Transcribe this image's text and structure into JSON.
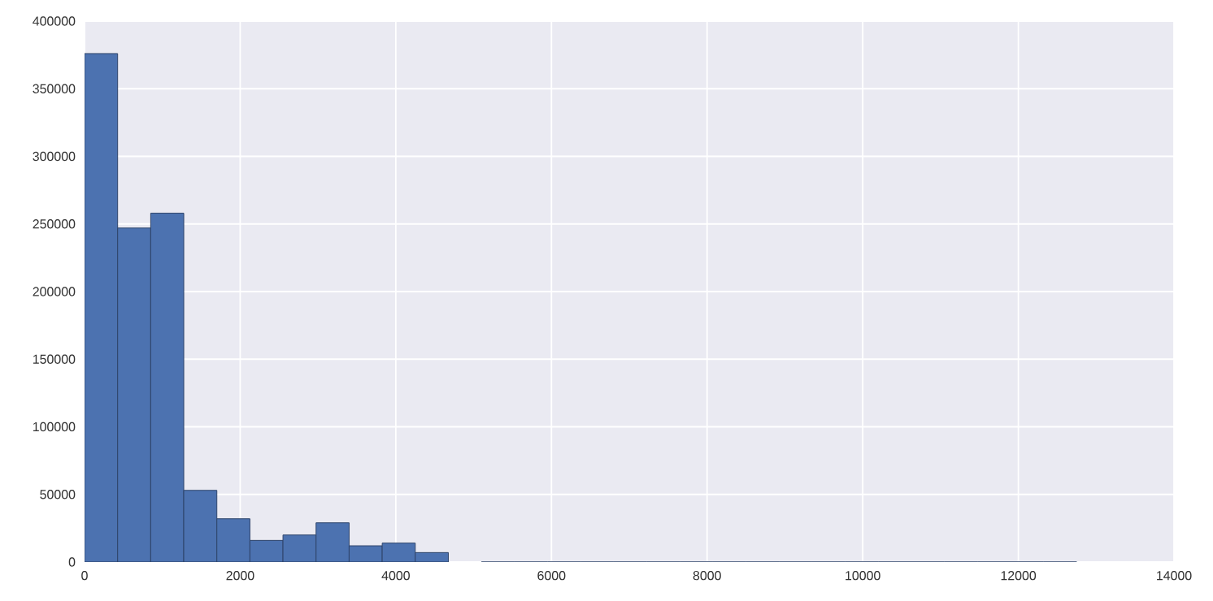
{
  "chart_data": {
    "type": "histogram",
    "color": "#4c72b0",
    "bins": [
      0,
      425,
      850,
      1275,
      1700,
      2125,
      2550,
      2975,
      3400,
      3825,
      4250,
      4675,
      5100,
      5525,
      5950,
      6375,
      6800,
      7225,
      7650,
      8075,
      8500,
      8925,
      9350,
      9775,
      10200,
      10625,
      11050,
      11475,
      11900,
      12325,
      12750
    ],
    "values": [
      376000,
      247000,
      258000,
      53000,
      32000,
      16000,
      20000,
      29000,
      12000,
      14000,
      7000,
      null,
      0,
      0,
      0,
      0,
      0,
      0,
      0,
      0,
      0,
      0,
      0,
      0,
      0,
      0,
      0,
      0,
      0,
      0
    ],
    "xlim": [
      0,
      14000
    ],
    "xticks": [
      0,
      2000,
      4000,
      6000,
      8000,
      10000,
      12000,
      14000
    ],
    "ylim": [
      0,
      400000
    ],
    "yticks": [
      0,
      50000,
      100000,
      150000,
      200000,
      250000,
      300000,
      350000,
      400000
    ],
    "grid": true
  }
}
